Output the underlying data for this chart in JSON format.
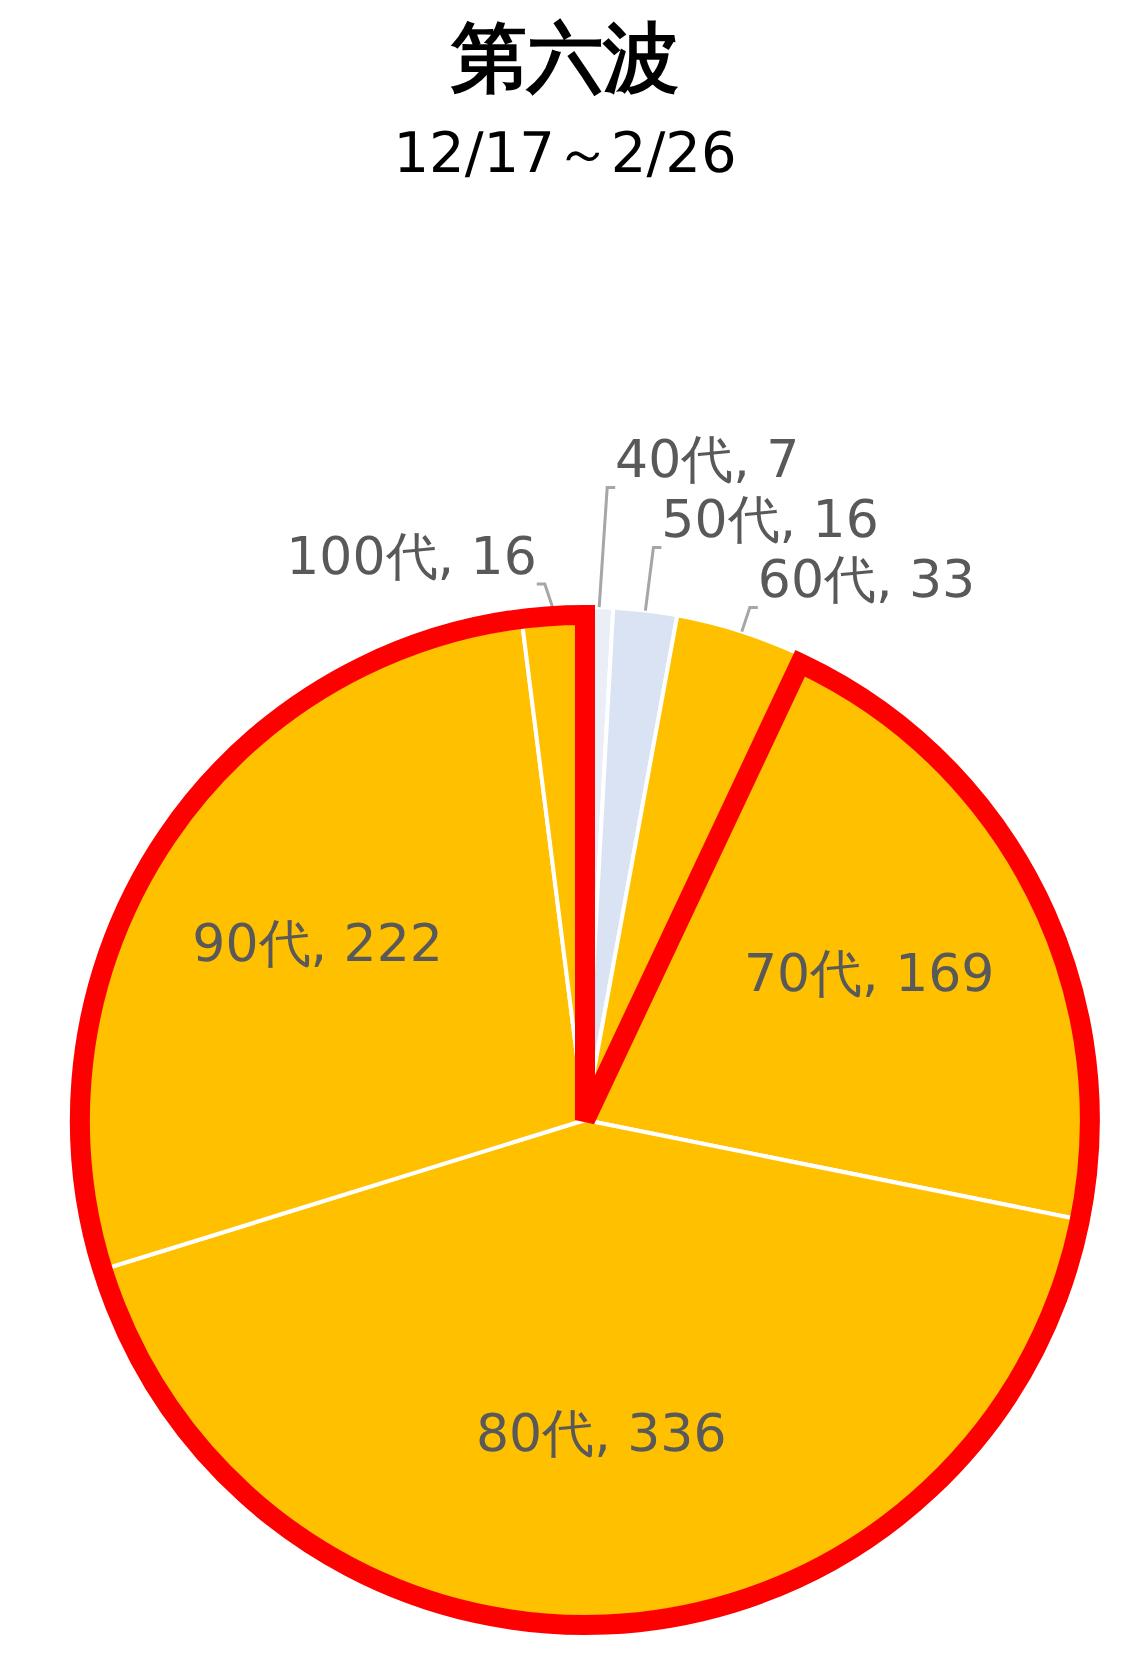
{
  "chart_data": {
    "type": "pie",
    "title": "第六波",
    "subtitle": "12/17～2/26",
    "categories": [
      "40代",
      "50代",
      "60代",
      "70代",
      "80代",
      "90代",
      "100代"
    ],
    "values": [
      7,
      16,
      33,
      169,
      336,
      222,
      16
    ],
    "colors": [
      "#e9eef7",
      "#dae3f3",
      "#ffc000",
      "#ffc000",
      "#ffc000",
      "#ffc000",
      "#ffc000"
    ],
    "value_labels": [
      ", 7",
      ", 16",
      ", 33",
      ", 169",
      ", 336",
      ", 222",
      ", 16"
    ],
    "legend": false
  }
}
